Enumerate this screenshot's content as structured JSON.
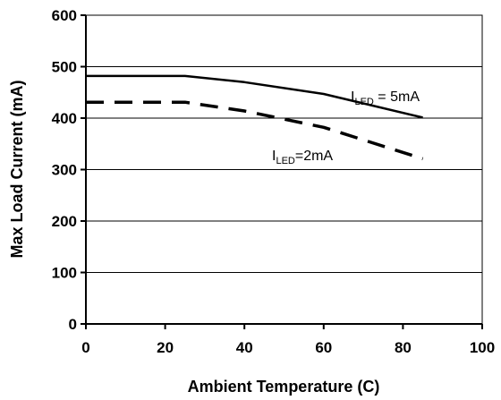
{
  "chart_data": {
    "type": "line",
    "xlabel": "Ambient Temperature (C)",
    "ylabel": "Max Load Current (mA)",
    "xlim": [
      0,
      100
    ],
    "ylim": [
      0,
      600
    ],
    "x_ticks": [
      0,
      20,
      40,
      60,
      80,
      100
    ],
    "y_ticks": [
      0,
      100,
      200,
      300,
      400,
      500,
      600
    ],
    "grid": "horizontal",
    "legend": "none",
    "series": [
      {
        "line_style": "solid",
        "color": "#000000",
        "x": [
          0,
          25,
          40,
          60,
          85
        ],
        "y": [
          482,
          482,
          470,
          447,
          401
        ]
      },
      {
        "line_style": "dashed",
        "color": "#000000",
        "x": [
          0,
          25,
          40,
          60,
          85
        ],
        "y": [
          431,
          431,
          414,
          382,
          321
        ]
      }
    ],
    "annotations": [
      {
        "base": "I",
        "sub": "LED",
        "rest": " = 5mA"
      },
      {
        "base": "I",
        "sub": "LED",
        "rest": "=2mA"
      }
    ]
  }
}
